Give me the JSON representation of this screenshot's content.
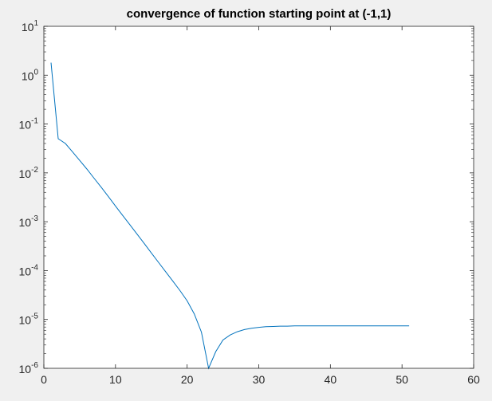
{
  "chart_data": {
    "type": "line",
    "title": "convergence of function starting point at (-1,1)",
    "xlabel": "",
    "ylabel": "",
    "xlim": [
      0,
      60
    ],
    "ylim": [
      1e-06,
      10
    ],
    "yscale": "log",
    "grid": false,
    "x_ticks": [
      0,
      10,
      20,
      30,
      40,
      50,
      60
    ],
    "x_tick_labels": [
      "0",
      "10",
      "20",
      "30",
      "40",
      "50",
      "60"
    ],
    "y_ticks": [
      1e-06,
      1e-05,
      0.0001,
      0.001,
      0.01,
      0.1,
      1,
      10
    ],
    "y_tick_bases": [
      "10",
      "10",
      "10",
      "10",
      "10",
      "10",
      "10",
      "10"
    ],
    "y_tick_exponents": [
      "-6",
      "-5",
      "-4",
      "-3",
      "-2",
      "-1",
      "0",
      "1"
    ],
    "series": [
      {
        "color": "#0072bd",
        "x": [
          1,
          2,
          3,
          4,
          5,
          6,
          7,
          8,
          9,
          10,
          11,
          12,
          13,
          14,
          15,
          16,
          17,
          18,
          19,
          20,
          21,
          22,
          23,
          24,
          25,
          26,
          27,
          28,
          29,
          30,
          31,
          32,
          33,
          34,
          35,
          36,
          37,
          38,
          39,
          40,
          41,
          42,
          43,
          44,
          45,
          46,
          47,
          48,
          49,
          50,
          51
        ],
        "y": [
          1.8,
          0.05,
          0.04,
          0.027,
          0.018,
          0.012,
          0.0078,
          0.0051,
          0.0033,
          0.0021,
          0.00135,
          0.00087,
          0.00056,
          0.00036,
          0.00023,
          0.000148,
          9.5e-05,
          6.1e-05,
          3.9e-05,
          2.4e-05,
          1.3e-05,
          5.5e-06,
          1e-06,
          2.2e-06,
          3.8e-06,
          4.8e-06,
          5.6e-06,
          6.2e-06,
          6.6e-06,
          6.9e-06,
          7.1e-06,
          7.2e-06,
          7.3e-06,
          7.3e-06,
          7.4e-06,
          7.4e-06,
          7.4e-06,
          7.4e-06,
          7.4e-06,
          7.4e-06,
          7.4e-06,
          7.4e-06,
          7.4e-06,
          7.4e-06,
          7.4e-06,
          7.4e-06,
          7.4e-06,
          7.4e-06,
          7.4e-06,
          7.4e-06,
          7.4e-06
        ]
      }
    ]
  }
}
